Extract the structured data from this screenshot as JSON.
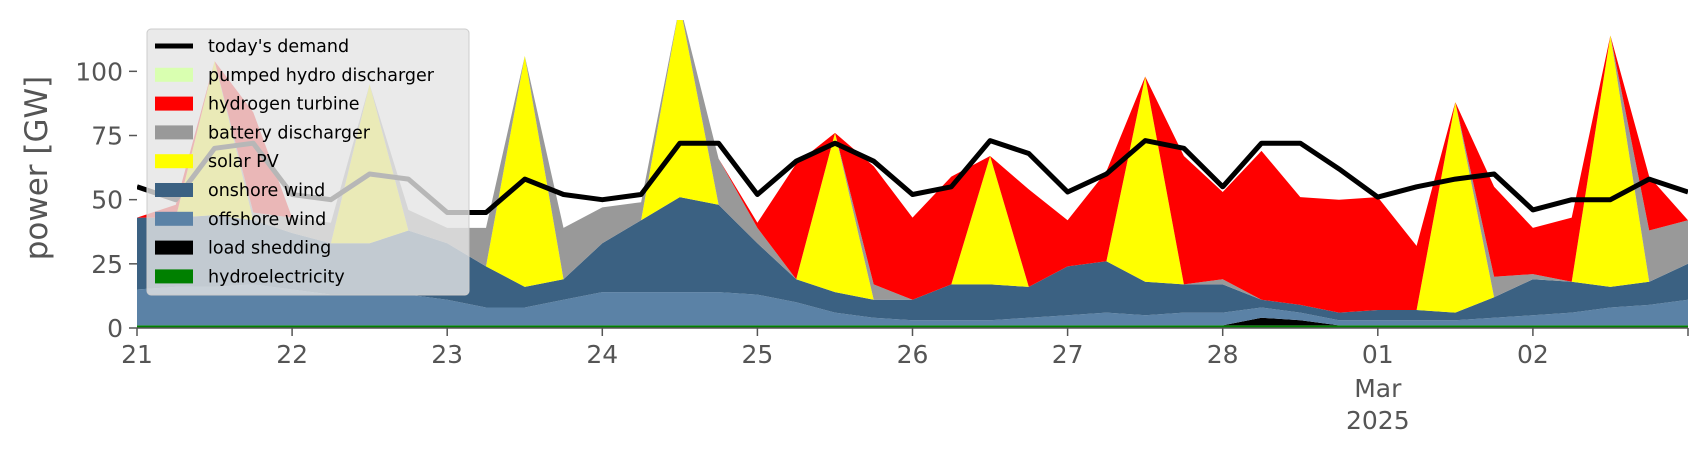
{
  "chart_data": {
    "type": "area",
    "xlabel": "",
    "ylabel": "power [GW]",
    "ylim": [
      0,
      120
    ],
    "xlim": [
      "2025-02-21 00:00",
      "2025-03-03 00:00"
    ],
    "grid": false,
    "legend_placement": "top-left",
    "x_ticks": [
      {
        "date": "2025-02-21",
        "label": "21"
      },
      {
        "date": "2025-02-22",
        "label": "22"
      },
      {
        "date": "2025-02-23",
        "label": "23"
      },
      {
        "date": "2025-02-24",
        "label": "24"
      },
      {
        "date": "2025-02-25",
        "label": "25"
      },
      {
        "date": "2025-02-26",
        "label": "26"
      },
      {
        "date": "2025-02-27",
        "label": "27"
      },
      {
        "date": "2025-02-28",
        "label": "28"
      },
      {
        "date": "2025-03-01",
        "label": "01",
        "sublabels": [
          "Mar",
          "2025"
        ]
      },
      {
        "date": "2025-03-02",
        "label": "02"
      },
      {
        "date": "2025-03-03",
        "label": ""
      }
    ],
    "y_ticks": [
      0,
      25,
      50,
      75,
      100
    ],
    "x": [
      "2025-02-21 00:00",
      "2025-02-21 06:00",
      "2025-02-21 12:00",
      "2025-02-21 18:00",
      "2025-02-22 00:00",
      "2025-02-22 06:00",
      "2025-02-22 12:00",
      "2025-02-22 18:00",
      "2025-02-23 00:00",
      "2025-02-23 06:00",
      "2025-02-23 12:00",
      "2025-02-23 18:00",
      "2025-02-24 00:00",
      "2025-02-24 06:00",
      "2025-02-24 12:00",
      "2025-02-24 18:00",
      "2025-02-25 00:00",
      "2025-02-25 06:00",
      "2025-02-25 12:00",
      "2025-02-25 18:00",
      "2025-02-26 00:00",
      "2025-02-26 06:00",
      "2025-02-26 12:00",
      "2025-02-26 18:00",
      "2025-02-27 00:00",
      "2025-02-27 06:00",
      "2025-02-27 12:00",
      "2025-02-27 18:00",
      "2025-02-28 00:00",
      "2025-02-28 06:00",
      "2025-02-28 12:00",
      "2025-02-28 18:00",
      "2025-03-01 00:00",
      "2025-03-01 06:00",
      "2025-03-01 12:00",
      "2025-03-01 18:00",
      "2025-03-02 00:00",
      "2025-03-02 06:00",
      "2025-03-02 12:00",
      "2025-03-02 18:00",
      "2025-03-03 00:00"
    ],
    "series": [
      {
        "name": "hydroelectricity",
        "color": "#008000",
        "values": [
          1,
          1,
          1,
          1,
          1,
          1,
          1,
          1,
          1,
          1,
          1,
          1,
          1,
          1,
          1,
          1,
          1,
          1,
          1,
          1,
          1,
          1,
          1,
          1,
          1,
          1,
          1,
          1,
          1,
          1,
          1,
          1,
          1,
          1,
          1,
          1,
          1,
          1,
          1,
          1,
          1
        ]
      },
      {
        "name": "load shedding",
        "color": "#000000",
        "values": [
          0,
          0,
          0,
          0,
          0,
          0,
          0,
          0,
          0,
          0,
          0,
          0,
          0,
          0,
          0,
          0,
          0,
          0,
          0,
          0,
          0,
          0,
          0,
          0,
          0,
          0,
          0,
          0,
          0,
          3,
          2,
          0,
          0,
          0,
          0,
          0,
          0,
          0,
          0,
          0,
          0
        ]
      },
      {
        "name": "offshore wind",
        "color": "#5b82a6",
        "values": [
          14,
          15,
          15,
          16,
          14,
          12,
          12,
          12,
          10,
          7,
          7,
          10,
          13,
          13,
          13,
          13,
          12,
          9,
          5,
          3,
          2,
          2,
          2,
          3,
          4,
          5,
          4,
          5,
          5,
          4,
          3,
          2,
          2,
          2,
          2,
          3,
          4,
          5,
          7,
          8,
          10
        ]
      },
      {
        "name": "onshore wind",
        "color": "#3b6182",
        "values": [
          28,
          27,
          28,
          25,
          22,
          20,
          20,
          25,
          22,
          16,
          8,
          8,
          19,
          28,
          37,
          34,
          20,
          9,
          8,
          7,
          8,
          14,
          14,
          12,
          19,
          20,
          13,
          11,
          11,
          3,
          3,
          3,
          4,
          4,
          3,
          8,
          14,
          12,
          8,
          9,
          14
        ]
      },
      {
        "name": "solar PV",
        "color": "#ffff00",
        "values": [
          0,
          0,
          60,
          0,
          0,
          0,
          62,
          0,
          0,
          0,
          90,
          0,
          0,
          0,
          75,
          0,
          0,
          0,
          62,
          0,
          0,
          0,
          50,
          0,
          0,
          0,
          80,
          0,
          0,
          0,
          0,
          0,
          0,
          0,
          82,
          0,
          0,
          0,
          98,
          0,
          0
        ]
      },
      {
        "name": "battery discharger",
        "color": "#999999",
        "values": [
          0,
          0,
          0,
          3,
          6,
          8,
          0,
          8,
          6,
          15,
          0,
          20,
          14,
          7,
          0,
          18,
          6,
          0,
          0,
          6,
          0,
          0,
          0,
          0,
          0,
          0,
          0,
          0,
          2,
          0,
          0,
          0,
          0,
          0,
          0,
          8,
          2,
          0,
          0,
          20,
          17
        ]
      },
      {
        "name": "hydrogen turbine",
        "color": "#ff0000",
        "values": [
          0,
          5,
          0,
          39,
          0,
          0,
          0,
          0,
          0,
          0,
          0,
          0,
          0,
          0,
          0,
          0,
          2,
          45,
          0,
          46,
          32,
          42,
          0,
          38,
          18,
          35,
          0,
          50,
          34,
          58,
          42,
          44,
          44,
          25,
          0,
          35,
          18,
          25,
          0,
          21,
          0
        ]
      },
      {
        "name": "pumped hydro discharger",
        "color": "#d9ffb0",
        "values": [
          0,
          0,
          0,
          0,
          0,
          0,
          0,
          0,
          0,
          0,
          0,
          0,
          0,
          0,
          0,
          0,
          0,
          0,
          0,
          0,
          0,
          0,
          0,
          0,
          0,
          0,
          0,
          0,
          0,
          0,
          0,
          0,
          0,
          0,
          0,
          0,
          0,
          0,
          0,
          0,
          0
        ]
      },
      {
        "name": "today's demand",
        "type": "line",
        "color": "#000000",
        "values": [
          55,
          50,
          70,
          72,
          52,
          50,
          60,
          58,
          45,
          45,
          58,
          52,
          50,
          52,
          72,
          72,
          52,
          65,
          72,
          65,
          52,
          55,
          73,
          68,
          53,
          60,
          73,
          70,
          55,
          72,
          72,
          62,
          51,
          55,
          58,
          60,
          46,
          50,
          50,
          58,
          53
        ]
      }
    ]
  }
}
